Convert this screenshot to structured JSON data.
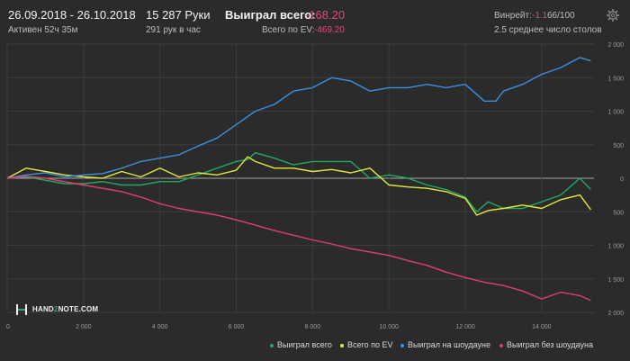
{
  "header": {
    "date_range": "26.09.2018 - 26.10.2018",
    "hands": "15 287 Руки",
    "won_total_label": "Выиграл всего:",
    "won_total_value": "-168.20",
    "active": "Активен 52ч 35м",
    "hands_per_hour": "291 рук в час",
    "ev_label": "Всего по EV:",
    "ev_value": "-469.20",
    "winrate_label": "Винрейт:",
    "winrate_value": "-1.1",
    "winrate_unit": "66/100",
    "avg_tables": "2.5 среднее число столов",
    "gear_icon": "gear-icon"
  },
  "logo": {
    "prefix": "HAND",
    "accent": "2",
    "suffix": "NOTE.COM"
  },
  "chart_data": {
    "type": "line",
    "xlim": [
      0,
      15300
    ],
    "ylim": [
      -2000,
      2000
    ],
    "x_ticks": [
      0,
      2000,
      4000,
      6000,
      8000,
      10000,
      12000,
      14000
    ],
    "x_tick_labels": [
      "0",
      "2 000",
      "4 000",
      "6 000",
      "8 000",
      "10 000",
      "12 000",
      "14 000"
    ],
    "y_ticks": [
      2000,
      1500,
      1000,
      500,
      0,
      -500,
      -1000,
      -1500,
      -2000
    ],
    "y_tick_labels": [
      "2 000",
      "1 500",
      "1 000",
      "500",
      "0",
      "500",
      "1 000",
      "1 500",
      "2 000"
    ],
    "grid": true,
    "legend_position": "bottom-right",
    "series": [
      {
        "name": "Выиграл всего",
        "color": "#22a866",
        "x": [
          0,
          500,
          1000,
          1500,
          2000,
          2500,
          3000,
          3500,
          4000,
          4500,
          5000,
          5500,
          6000,
          6300,
          6500,
          7000,
          7500,
          8000,
          8500,
          9000,
          9500,
          10000,
          10500,
          11000,
          11500,
          12000,
          12300,
          12600,
          13000,
          13500,
          14000,
          14500,
          15000,
          15287
        ],
        "values": [
          0,
          20,
          -30,
          -80,
          -80,
          -50,
          -100,
          -100,
          -50,
          -50,
          50,
          150,
          250,
          280,
          380,
          300,
          200,
          250,
          250,
          250,
          0,
          50,
          0,
          -100,
          -170,
          -280,
          -500,
          -350,
          -450,
          -450,
          -350,
          -250,
          0,
          -168
        ]
      },
      {
        "name": "Всего по EV",
        "color": "#e5e83a",
        "x": [
          0,
          500,
          1000,
          1500,
          2000,
          2500,
          3000,
          3500,
          4000,
          4500,
          5000,
          5500,
          6000,
          6300,
          6500,
          7000,
          7500,
          8000,
          8500,
          9000,
          9500,
          10000,
          10500,
          11000,
          11500,
          12000,
          12300,
          12600,
          13000,
          13500,
          14000,
          14500,
          15000,
          15287
        ],
        "values": [
          0,
          150,
          100,
          50,
          20,
          0,
          100,
          20,
          150,
          20,
          80,
          50,
          120,
          320,
          250,
          150,
          150,
          100,
          130,
          80,
          150,
          -100,
          -130,
          -150,
          -200,
          -300,
          -550,
          -480,
          -450,
          -400,
          -450,
          -320,
          -250,
          -469
        ]
      },
      {
        "name": "Выиграл на шоудауне",
        "color": "#3a8fe0",
        "x": [
          0,
          500,
          1000,
          1500,
          2000,
          2500,
          3000,
          3500,
          4000,
          4500,
          5000,
          5500,
          6000,
          6500,
          7000,
          7500,
          8000,
          8500,
          9000,
          9500,
          10000,
          10500,
          11000,
          11500,
          12000,
          12500,
          12800,
          13000,
          13500,
          14000,
          14500,
          15000,
          15287
        ],
        "values": [
          0,
          50,
          80,
          20,
          50,
          70,
          150,
          250,
          300,
          350,
          480,
          600,
          800,
          1000,
          1100,
          1300,
          1350,
          1500,
          1450,
          1300,
          1350,
          1350,
          1400,
          1350,
          1400,
          1150,
          1150,
          1300,
          1400,
          1550,
          1650,
          1800,
          1750
        ]
      },
      {
        "name": "Выиграл без шоудауна",
        "color": "#e33d6e",
        "x": [
          0,
          500,
          1000,
          1500,
          2000,
          2500,
          3000,
          3500,
          4000,
          4500,
          5000,
          5500,
          6000,
          6500,
          7000,
          7500,
          8000,
          8500,
          9000,
          9500,
          10000,
          10500,
          11000,
          11500,
          12000,
          12500,
          13000,
          13500,
          14000,
          14500,
          15000,
          15287
        ],
        "values": [
          0,
          30,
          0,
          -50,
          -100,
          -150,
          -200,
          -280,
          -380,
          -450,
          -500,
          -550,
          -620,
          -700,
          -780,
          -850,
          -920,
          -980,
          -1050,
          -1100,
          -1150,
          -1230,
          -1300,
          -1400,
          -1480,
          -1550,
          -1600,
          -1680,
          -1800,
          -1700,
          -1750,
          -1820
        ]
      }
    ]
  }
}
